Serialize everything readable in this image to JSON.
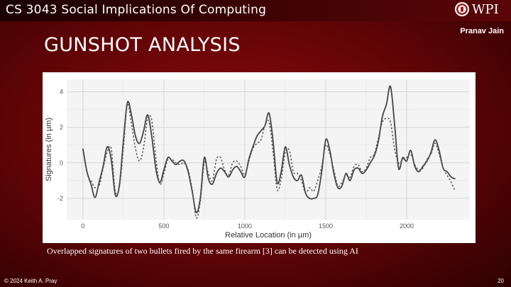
{
  "header": {
    "course_title": "CS 3043 Social Implications Of Computing",
    "logo_text": "WPI",
    "logo_icon": "wpi-seal-icon",
    "author": "Pranav Jain"
  },
  "slide": {
    "title": "GUNSHOT ANALYSIS",
    "caption": "Overlapped signatures of two bullets fired by the same firearm [3] can be detected using AI"
  },
  "footer": {
    "copyright": "© 2024 Keith A. Pray",
    "page_number": "20"
  },
  "colors": {
    "background": "#7a0608",
    "text": "#ffffff",
    "series_solid": "#444444",
    "series_dashed": "#555555"
  },
  "chart_data": {
    "type": "line",
    "title": "",
    "xlabel": "Relative Location (in µm)",
    "ylabel": "Signatures (in µm)",
    "xlim": [
      -100,
      2390
    ],
    "ylim": [
      -3.2,
      4.7
    ],
    "xticks": [
      0,
      500,
      1000,
      1500,
      2000
    ],
    "yticks": [
      -2,
      0,
      2,
      4
    ],
    "grid": true,
    "legend": "none",
    "series": [
      {
        "style": "solid",
        "points": [
          [
            0,
            0.8
          ],
          [
            25,
            -0.5
          ],
          [
            50,
            -1.2
          ],
          [
            75,
            -1.95
          ],
          [
            100,
            -1.1
          ],
          [
            125,
            -0.2
          ],
          [
            150,
            0.9
          ],
          [
            175,
            0.2
          ],
          [
            200,
            -1.8
          ],
          [
            225,
            -1.3
          ],
          [
            250,
            1.2
          ],
          [
            275,
            3.4
          ],
          [
            300,
            2.7
          ],
          [
            325,
            1.5
          ],
          [
            350,
            1.1
          ],
          [
            375,
            1.8
          ],
          [
            400,
            2.7
          ],
          [
            425,
            1.5
          ],
          [
            450,
            -0.3
          ],
          [
            475,
            -1.1
          ],
          [
            500,
            -0.4
          ],
          [
            525,
            0.3
          ],
          [
            550,
            0.1
          ],
          [
            575,
            -0.1
          ],
          [
            600,
            0.1
          ],
          [
            625,
            0.1
          ],
          [
            650,
            -0.5
          ],
          [
            675,
            -1.6
          ],
          [
            700,
            -2.8
          ],
          [
            725,
            -2.0
          ],
          [
            750,
            0.3
          ],
          [
            775,
            -0.9
          ],
          [
            800,
            -1.2
          ],
          [
            825,
            -0.6
          ],
          [
            850,
            -0.3
          ],
          [
            875,
            -0.5
          ],
          [
            900,
            -0.8
          ],
          [
            925,
            -0.4
          ],
          [
            950,
            -0.2
          ],
          [
            975,
            -0.5
          ],
          [
            1000,
            -0.8
          ],
          [
            1025,
            0.2
          ],
          [
            1050,
            0.9
          ],
          [
            1075,
            1.5
          ],
          [
            1100,
            1.8
          ],
          [
            1125,
            2.1
          ],
          [
            1150,
            2.8
          ],
          [
            1175,
            1.2
          ],
          [
            1200,
            -1.1
          ],
          [
            1225,
            -0.5
          ],
          [
            1250,
            0.9
          ],
          [
            1275,
            -0.1
          ],
          [
            1300,
            -0.8
          ],
          [
            1325,
            -1.0
          ],
          [
            1350,
            -0.7
          ],
          [
            1375,
            -1.7
          ],
          [
            1400,
            -2.0
          ],
          [
            1425,
            -2.0
          ],
          [
            1450,
            -1.8
          ],
          [
            1475,
            -0.5
          ],
          [
            1500,
            1.3
          ],
          [
            1525,
            0.7
          ],
          [
            1550,
            -0.6
          ],
          [
            1575,
            -1.4
          ],
          [
            1600,
            -1.3
          ],
          [
            1625,
            -0.6
          ],
          [
            1650,
            -1.0
          ],
          [
            1675,
            -0.4
          ],
          [
            1700,
            -0.3
          ],
          [
            1725,
            -0.6
          ],
          [
            1750,
            -0.4
          ],
          [
            1775,
            0.0
          ],
          [
            1800,
            0.4
          ],
          [
            1825,
            1.2
          ],
          [
            1850,
            2.6
          ],
          [
            1875,
            3.3
          ],
          [
            1900,
            4.3
          ],
          [
            1925,
            2.2
          ],
          [
            1950,
            -0.3
          ],
          [
            1975,
            0.3
          ],
          [
            2000,
            0.1
          ],
          [
            2025,
            0.7
          ],
          [
            2050,
            -0.2
          ],
          [
            2075,
            -0.5
          ],
          [
            2100,
            -0.2
          ],
          [
            2125,
            0.1
          ],
          [
            2150,
            0.6
          ],
          [
            2175,
            1.3
          ],
          [
            2200,
            0.7
          ],
          [
            2225,
            -0.3
          ],
          [
            2250,
            -0.5
          ],
          [
            2275,
            -0.8
          ],
          [
            2300,
            -0.9
          ]
        ]
      },
      {
        "style": "dashed",
        "points": [
          [
            50,
            -1.0
          ],
          [
            75,
            -1.4
          ],
          [
            100,
            -1.3
          ],
          [
            125,
            -0.3
          ],
          [
            150,
            0.6
          ],
          [
            175,
            0.8
          ],
          [
            200,
            -1.6
          ],
          [
            225,
            -1.4
          ],
          [
            250,
            0.8
          ],
          [
            275,
            3.3
          ],
          [
            300,
            2.2
          ],
          [
            325,
            0.8
          ],
          [
            350,
            0.1
          ],
          [
            375,
            0.9
          ],
          [
            400,
            2.5
          ],
          [
            425,
            2.4
          ],
          [
            450,
            0.3
          ],
          [
            475,
            -1.2
          ],
          [
            500,
            -0.6
          ],
          [
            525,
            0.2
          ],
          [
            550,
            0.2
          ],
          [
            575,
            0.0
          ],
          [
            600,
            -0.1
          ],
          [
            625,
            0.0
          ],
          [
            650,
            -0.4
          ],
          [
            675,
            -1.5
          ],
          [
            700,
            -3.1
          ],
          [
            725,
            -2.2
          ],
          [
            750,
            0.0
          ],
          [
            775,
            -0.6
          ],
          [
            800,
            -1.0
          ],
          [
            825,
            0.2
          ],
          [
            850,
            0.3
          ],
          [
            875,
            -0.4
          ],
          [
            900,
            -0.7
          ],
          [
            925,
            0.0
          ],
          [
            950,
            0.1
          ],
          [
            975,
            -0.2
          ],
          [
            1000,
            -0.7
          ],
          [
            1025,
            0.1
          ],
          [
            1050,
            0.8
          ],
          [
            1075,
            1.1
          ],
          [
            1100,
            1.3
          ],
          [
            1125,
            2.1
          ],
          [
            1150,
            2.3
          ],
          [
            1175,
            0.6
          ],
          [
            1200,
            -1.5
          ],
          [
            1225,
            -0.9
          ],
          [
            1250,
            0.6
          ],
          [
            1275,
            0.7
          ],
          [
            1300,
            -0.5
          ],
          [
            1325,
            -0.6
          ],
          [
            1350,
            -1.0
          ],
          [
            1375,
            -1.7
          ],
          [
            1400,
            -1.4
          ],
          [
            1425,
            -1.6
          ],
          [
            1450,
            -1.0
          ],
          [
            1475,
            -0.2
          ],
          [
            1500,
            1.0
          ],
          [
            1525,
            0.5
          ],
          [
            1550,
            -0.4
          ],
          [
            1575,
            -1.3
          ],
          [
            1600,
            -1.1
          ],
          [
            1625,
            -0.7
          ],
          [
            1650,
            -0.8
          ],
          [
            1675,
            -0.2
          ],
          [
            1700,
            -0.1
          ],
          [
            1725,
            -0.5
          ],
          [
            1750,
            -0.3
          ],
          [
            1775,
            0.3
          ],
          [
            1800,
            0.5
          ],
          [
            1825,
            1.4
          ],
          [
            1850,
            2.3
          ],
          [
            1875,
            2.5
          ],
          [
            1900,
            2.3
          ],
          [
            1925,
            0.8
          ],
          [
            1950,
            0.0
          ],
          [
            1975,
            0.2
          ],
          [
            2000,
            0.3
          ],
          [
            2025,
            0.5
          ],
          [
            2050,
            -0.1
          ],
          [
            2075,
            -0.4
          ],
          [
            2100,
            -0.3
          ],
          [
            2125,
            0.2
          ],
          [
            2150,
            0.5
          ],
          [
            2175,
            1.1
          ],
          [
            2200,
            0.5
          ],
          [
            2225,
            -0.3
          ],
          [
            2250,
            -0.7
          ],
          [
            2275,
            -1.1
          ],
          [
            2300,
            -1.6
          ]
        ]
      }
    ]
  }
}
